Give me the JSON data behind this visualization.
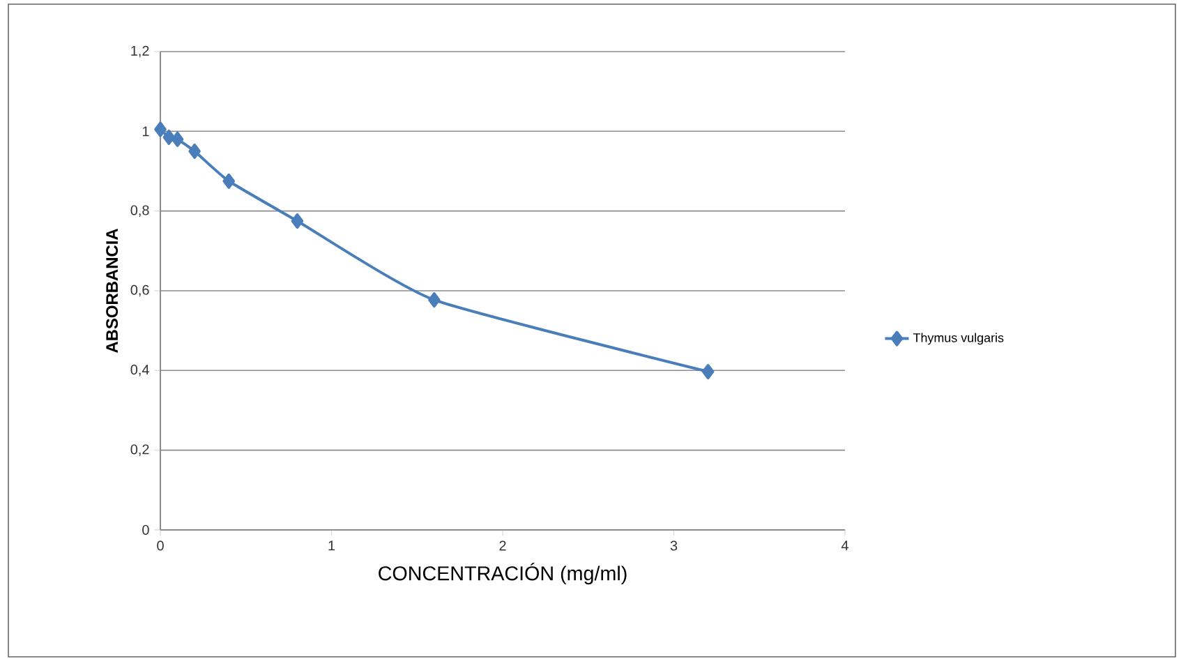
{
  "chart_data": {
    "type": "line",
    "xlabel": "CONCENTRACIÓN  (mg/ml)",
    "ylabel": "ABSORBANCIA",
    "xlim": [
      0,
      4
    ],
    "xticks": [
      0,
      1,
      2,
      3,
      4
    ],
    "ylim": [
      0,
      1.2
    ],
    "yticks": [
      0,
      {
        "value": 0.2,
        "label": "0,2"
      },
      {
        "value": 0.4,
        "label": "0,4"
      },
      {
        "value": 0.6,
        "label": "0,6"
      },
      {
        "value": 0.8,
        "label": "0,8"
      },
      1,
      {
        "value": 1.2,
        "label": "1,2"
      }
    ],
    "grid": "y",
    "legend": "right",
    "marker": "diamond",
    "line_style": "solid",
    "series": [
      {
        "name": "Thymus vulgaris",
        "color": "#4a7ebb",
        "x": [
          0,
          0.05,
          0.1,
          0.2,
          0.4,
          0.8,
          1.6,
          3.2
        ],
        "values": [
          1.005,
          0.985,
          0.98,
          0.95,
          0.875,
          0.775,
          0.577,
          0.397
        ]
      }
    ]
  }
}
